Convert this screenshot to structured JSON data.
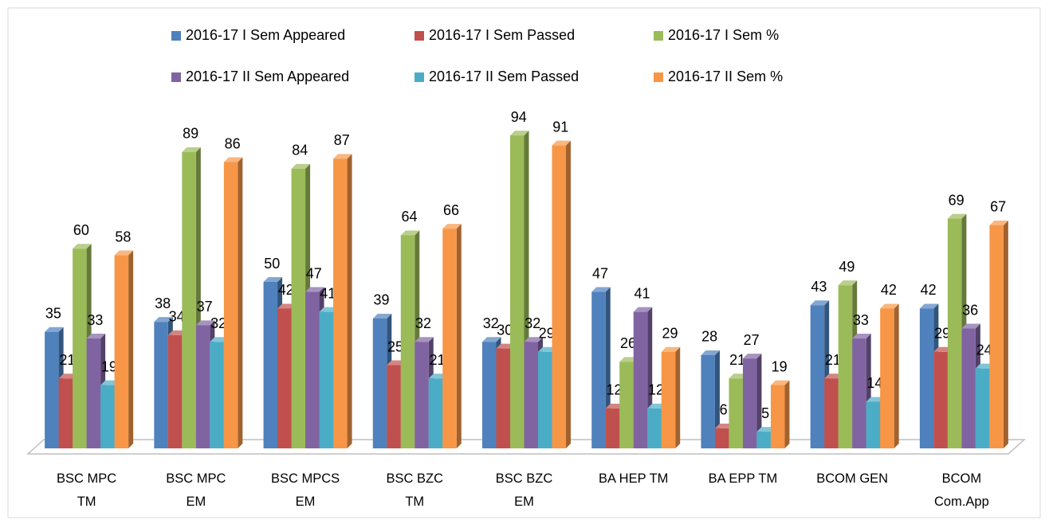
{
  "chart_data": {
    "type": "bar3d",
    "categories": [
      "BSC MPC TM",
      "BSC MPC EM",
      "BSC MPCS EM",
      "BSC BZC TM",
      "BSC BZC EM",
      "BA HEP TM",
      "BA EPP TM",
      "BCOM GEN",
      "BCOM Com.App"
    ],
    "series": [
      {
        "name": "2016-17 I Sem Appeared",
        "color": "#4f81bd",
        "values": [
          35,
          38,
          50,
          39,
          32,
          47,
          28,
          43,
          42
        ]
      },
      {
        "name": "2016-17 I Sem Passed",
        "color": "#c0504d",
        "values": [
          21,
          34,
          42,
          25,
          30,
          12,
          6,
          21,
          29
        ]
      },
      {
        "name": "2016-17 I Sem %",
        "color": "#9bbb59",
        "values": [
          60,
          89,
          84,
          64,
          94,
          26,
          21,
          49,
          69
        ]
      },
      {
        "name": "2016-17 II Sem Appeared",
        "color": "#8064a2",
        "values": [
          33,
          37,
          47,
          32,
          32,
          41,
          27,
          33,
          36
        ]
      },
      {
        "name": "2016-17 II Sem Passed",
        "color": "#4bacc6",
        "values": [
          19,
          32,
          41,
          21,
          29,
          12,
          5,
          14,
          24
        ]
      },
      {
        "name": "2016-17 II Sem %",
        "color": "#f79646",
        "values": [
          58,
          86,
          87,
          66,
          91,
          29,
          19,
          42,
          67
        ]
      }
    ],
    "ylim": [
      0,
      100
    ],
    "legend": "top"
  }
}
